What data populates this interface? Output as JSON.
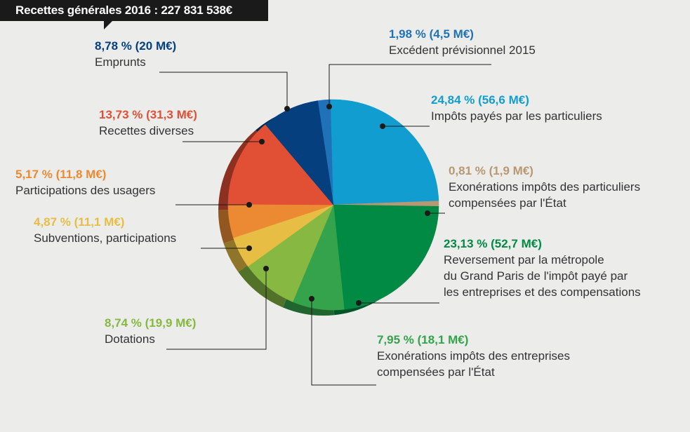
{
  "title": "Recettes générales 2016 : 227 831 538€",
  "chart_data": {
    "type": "pie",
    "title": "Recettes générales 2016 : 227 831 538€",
    "slices": [
      {
        "pct_label": "1,98 % (4,5 M€)",
        "desc": [
          "Excédent prévisionnel 2015"
        ],
        "value": 1.98,
        "color": "#1f72b8"
      },
      {
        "pct_label": "24,84 % (56,6 M€)",
        "desc": [
          "Impôts payés par les particuliers"
        ],
        "value": 24.84,
        "color": "#119dd0"
      },
      {
        "pct_label": "0,81 % (1,9 M€)",
        "desc": [
          "Exonérations impôts des particuliers",
          "compensées par l'État"
        ],
        "value": 0.81,
        "color": "#b89873"
      },
      {
        "pct_label": "23,13 % (52,7 M€)",
        "desc": [
          "Reversement par la métropole",
          "du Grand Paris de l'impôt payé par",
          "les entreprises et des compensations"
        ],
        "value": 23.13,
        "color": "#018a44"
      },
      {
        "pct_label": "7,95 % (18,1 M€)",
        "desc": [
          "Exonérations impôts des entreprises",
          "compensées par l'État"
        ],
        "value": 7.95,
        "color": "#34a34b"
      },
      {
        "pct_label": "8,74 % (19,9 M€)",
        "desc": [
          "Dotations"
        ],
        "value": 8.74,
        "color": "#86b842"
      },
      {
        "pct_label": "4,87 % (11,1 M€)",
        "desc": [
          "Subventions, participations"
        ],
        "value": 4.87,
        "color": "#e7bd44"
      },
      {
        "pct_label": "5,17 % (11,8 M€)",
        "desc": [
          "Participations des usagers"
        ],
        "value": 5.17,
        "color": "#ec8a33"
      },
      {
        "pct_label": "13,73 % (31,3 M€)",
        "desc": [
          "Recettes diverses"
        ],
        "value": 13.73,
        "color": "#e14f35"
      },
      {
        "pct_label": "8,78 % (20 M€)",
        "desc": [
          "Emprunts"
        ],
        "value": 8.78,
        "color": "#063f7e"
      }
    ]
  },
  "label_colors": {
    "Excédent prévisionnel 2015": "#1f72b8",
    "Impôts payés par les particuliers": "#119dd0",
    "Exonérations impôts des particuliers": "#b89873",
    "Reversement": "#018a44",
    "Exonérations impôts des entreprises": "#34a34b",
    "Dotations": "#86b842",
    "Subventions": "#e7bd44",
    "Participations des usagers": "#ec8a33",
    "Recettes diverses": "#e14f35",
    "Emprunts": "#063f7e"
  }
}
